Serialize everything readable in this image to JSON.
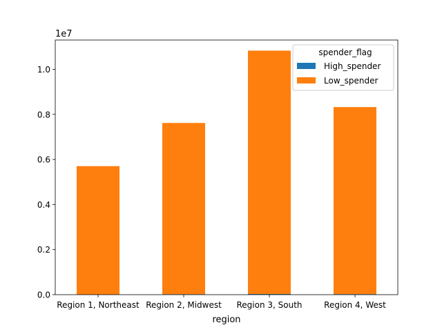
{
  "chart_data": {
    "type": "bar",
    "stacked": true,
    "categories": [
      "Region 1, Northeast",
      "Region 2, Midwest",
      "Region 3, South",
      "Region 4, West"
    ],
    "series": [
      {
        "name": "High_spender",
        "values": [
          4000,
          20000,
          30000,
          25000
        ],
        "color": "#1f77b4"
      },
      {
        "name": "Low_spender",
        "values": [
          5700000,
          7600000,
          10800000,
          8300000
        ],
        "color": "#ff7f0e"
      }
    ],
    "title": "",
    "xlabel": "region",
    "ylabel": "",
    "ylim": [
      0,
      11300000
    ],
    "yticks": [
      0,
      2000000,
      4000000,
      6000000,
      8000000,
      10000000
    ],
    "ytick_labels": [
      "0.0",
      "0.2",
      "0.4",
      "0.6",
      "0.8",
      "1.0"
    ],
    "y_offset_label": "1e7",
    "legend": {
      "title": "spender_flag",
      "placement": "top-right"
    },
    "grid": false
  }
}
